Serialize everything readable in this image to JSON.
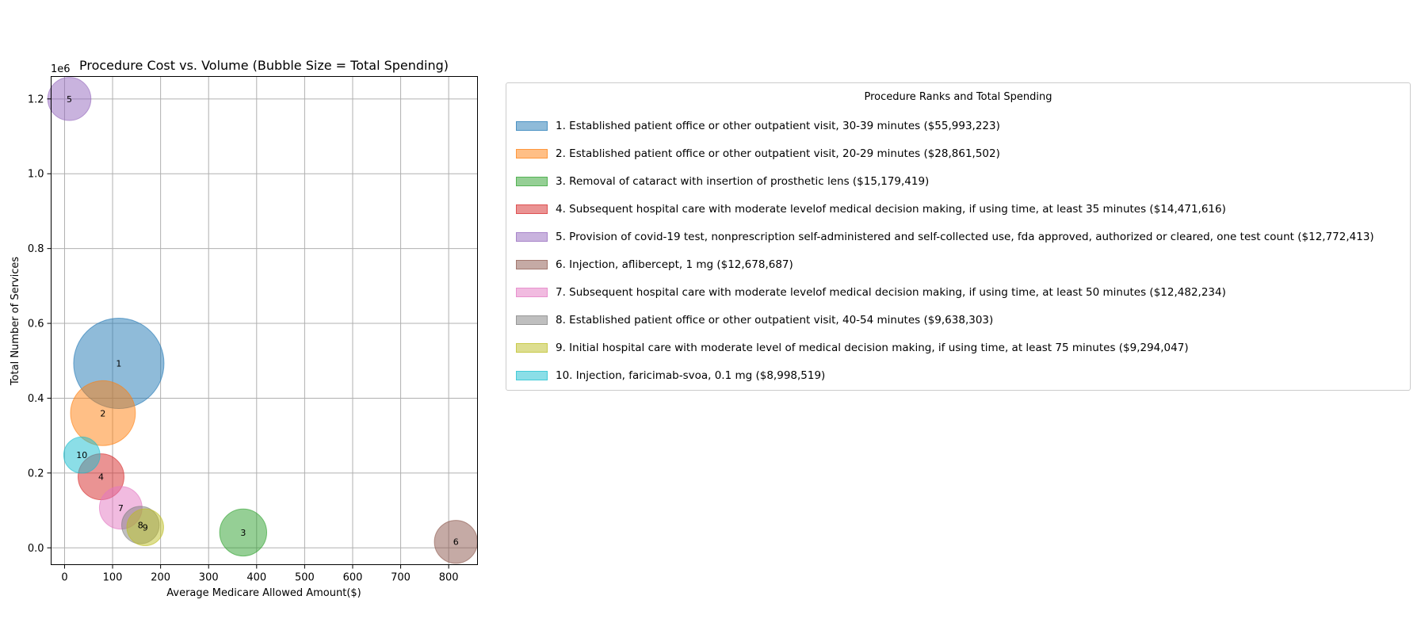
{
  "chart_data": {
    "type": "scatter",
    "title": "Procedure Cost vs. Volume (Bubble Size = Total Spending)",
    "xlabel": "Average Medicare Allowed Amount($)",
    "ylabel": "Total Number of Services",
    "y_offset_label": "1e6",
    "xlim": [
      -28,
      860
    ],
    "ylim": [
      -0.045,
      1.26
    ],
    "xticks": [
      0,
      100,
      200,
      300,
      400,
      500,
      600,
      700,
      800
    ],
    "yticks": [
      0.0,
      0.2,
      0.4,
      0.6,
      0.8,
      1.0,
      1.2
    ],
    "xtick_labels": [
      "0",
      "100",
      "200",
      "300",
      "400",
      "500",
      "600",
      "700",
      "800"
    ],
    "ytick_labels": [
      "0.0",
      "0.2",
      "0.4",
      "0.6",
      "0.8",
      "1.0",
      "1.2"
    ],
    "grid": true,
    "legend_placement": "outside-right",
    "legend_title": "Procedure Ranks and Total Spending",
    "points": [
      {
        "rank": "1",
        "x": 113,
        "y": 0.493,
        "spending": 55993223,
        "color": "#1f77b4",
        "legend": "1. Established patient office or other outpatient visit, 30-39 minutes ($55,993,223)"
      },
      {
        "rank": "2",
        "x": 80,
        "y": 0.36,
        "spending": 28861502,
        "color": "#ff7f0e",
        "legend": "2. Established patient office or other outpatient visit, 20-29 minutes ($28,861,502)"
      },
      {
        "rank": "3",
        "x": 372,
        "y": 0.041,
        "spending": 15179419,
        "color": "#2ca02c",
        "legend": "3. Removal of cataract with insertion of prosthetic lens ($15,179,419)"
      },
      {
        "rank": "4",
        "x": 76,
        "y": 0.19,
        "spending": 14471616,
        "color": "#d62728",
        "legend": "4. Subsequent hospital care with moderate levelof medical decision making, if using time, at least 35 minutes ($14,471,616)"
      },
      {
        "rank": "5",
        "x": 10,
        "y": 1.2,
        "spending": 12772413,
        "color": "#9467bd",
        "legend": "5. Provision of covid-19 test, nonprescription self-administered and self-collected use, fda approved, authorized or cleared, one test count ($12,772,413)"
      },
      {
        "rank": "6",
        "x": 815,
        "y": 0.016,
        "spending": 12678687,
        "color": "#8c564b",
        "legend": "6. Injection, aflibercept, 1 mg ($12,678,687)"
      },
      {
        "rank": "7",
        "x": 117,
        "y": 0.107,
        "spending": 12482234,
        "color": "#e377c2",
        "legend": "7. Subsequent hospital care with moderate levelof medical decision making, if using time, at least 50 minutes ($12,482,234)"
      },
      {
        "rank": "8",
        "x": 158,
        "y": 0.061,
        "spending": 9638303,
        "color": "#7f7f7f",
        "legend": "8. Established patient office or other outpatient visit, 40-54 minutes ($9,638,303)"
      },
      {
        "rank": "9",
        "x": 168,
        "y": 0.055,
        "spending": 9294047,
        "color": "#bcbd22",
        "legend": "9. Initial hospital care with moderate level of medical decision making, if using time, at least 75 minutes ($9,294,047)"
      },
      {
        "rank": "10",
        "x": 36,
        "y": 0.248,
        "spending": 8998519,
        "color": "#17becf",
        "legend": "10. Injection, faricimab-svoa, 0.1 mg ($8,998,519)"
      }
    ]
  }
}
